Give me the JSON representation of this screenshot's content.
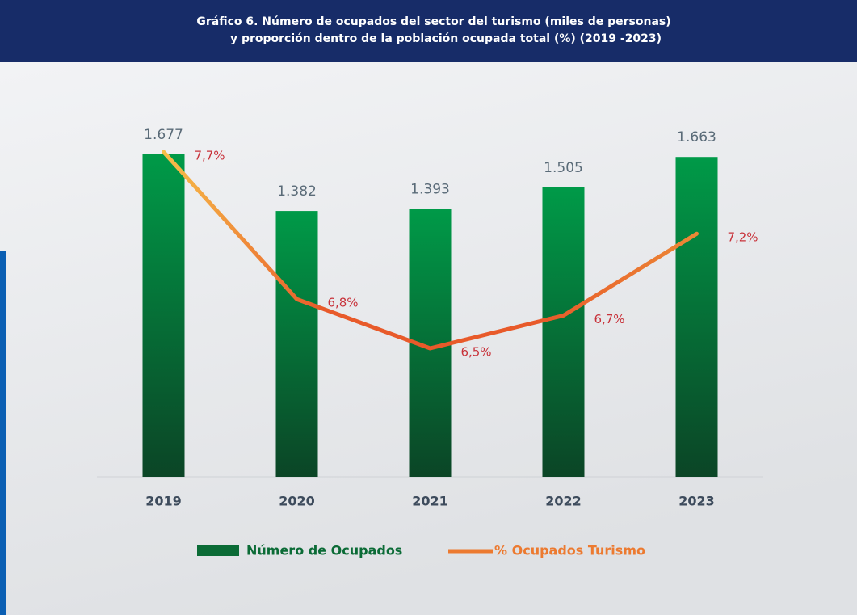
{
  "chart_data": {
    "type": "bar",
    "title": [
      "Gráfico 6. Número de ocupados del sector del turismo (miles de personas)",
      "y proporción dentro de la población ocupada total (%) (2019 -2023)"
    ],
    "categories": [
      "2019",
      "2020",
      "2021",
      "2022",
      "2023"
    ],
    "ylim": [
      0,
      2000
    ],
    "y2lim": [
      5.715,
      8.065
    ],
    "series": [
      {
        "name": "Número de Ocupados",
        "type": "bar",
        "color": "#008c43",
        "values": [
          1677,
          1382,
          1393,
          1505,
          1663
        ],
        "value_labels": [
          "1.677",
          "1.382",
          "1.393",
          "1.505",
          "1.663"
        ]
      },
      {
        "name": "% Ocupados Turismo",
        "type": "line",
        "axis": "y2",
        "color": "#e8692e",
        "values": [
          7.7,
          6.8,
          6.5,
          6.7,
          7.2
        ],
        "value_labels": [
          "7,7%",
          "6,8%",
          "6,5%",
          "6,7%",
          "7,2%"
        ]
      }
    ]
  }
}
